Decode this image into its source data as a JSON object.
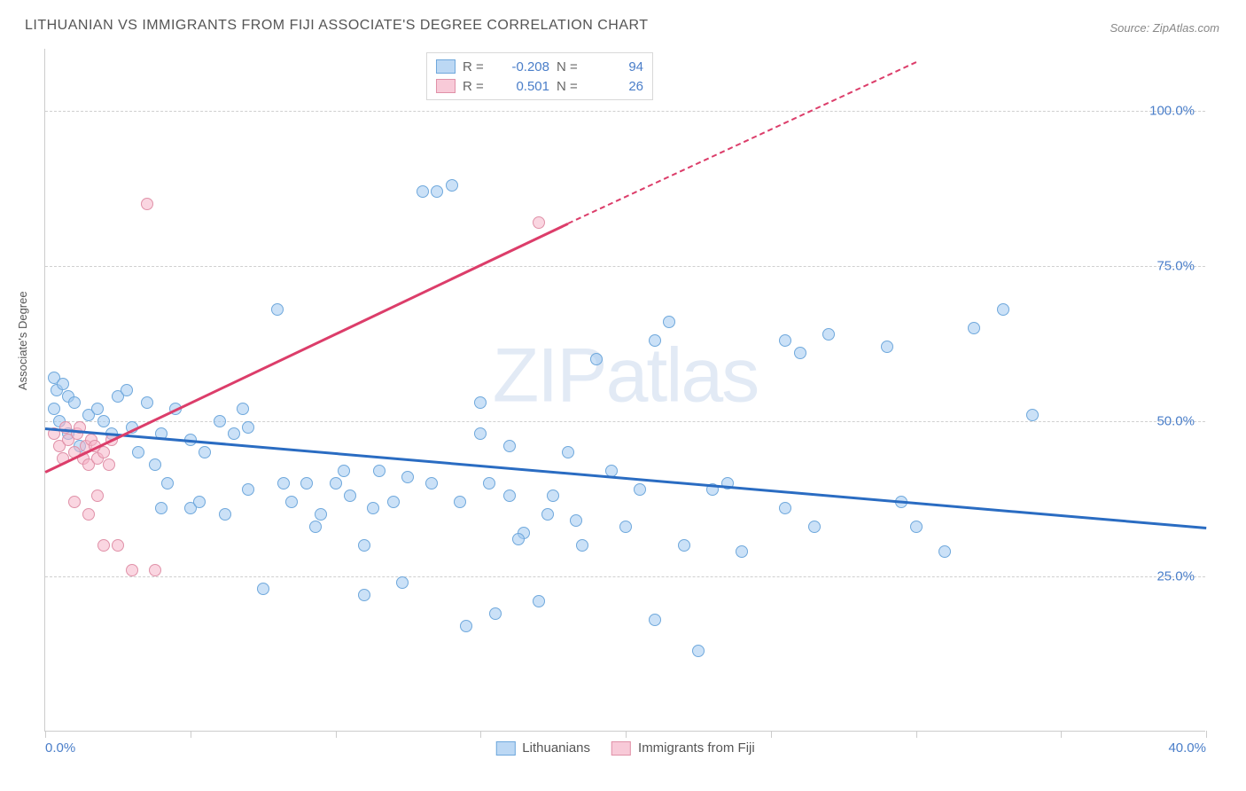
{
  "title": "LITHUANIAN VS IMMIGRANTS FROM FIJI ASSOCIATE'S DEGREE CORRELATION CHART",
  "source": "Source: ZipAtlas.com",
  "watermark_a": "ZIP",
  "watermark_b": "atlas",
  "ylabel": "Associate's Degree",
  "chart": {
    "type": "scatter",
    "xlim": [
      0,
      40
    ],
    "ylim": [
      0,
      110
    ],
    "y_ticks": [
      25,
      50,
      75,
      100
    ],
    "y_tick_labels": [
      "25.0%",
      "50.0%",
      "75.0%",
      "100.0%"
    ],
    "x_ticks": [
      0,
      5,
      10,
      15,
      20,
      25,
      30,
      35,
      40
    ],
    "x_tick_labels_shown": {
      "0": "0.0%",
      "40": "40.0%"
    },
    "background": "#ffffff",
    "grid_color": "#d0d0d0",
    "axis_color": "#cccccc",
    "series": [
      {
        "name": "Lithuanians",
        "color_fill": "rgba(160,200,240,0.55)",
        "color_stroke": "#6fa8dc",
        "R": "-0.208",
        "N": "94",
        "trend": {
          "x1": 0,
          "y1": 49,
          "x2": 40,
          "y2": 33,
          "color": "#2a6cc2",
          "width": 2.5
        },
        "points": [
          [
            0.3,
            57
          ],
          [
            0.4,
            55
          ],
          [
            0.6,
            56
          ],
          [
            0.8,
            54
          ],
          [
            1.0,
            53
          ],
          [
            0.5,
            50
          ],
          [
            0.8,
            48
          ],
          [
            1.2,
            46
          ],
          [
            0.3,
            52
          ],
          [
            1.5,
            51
          ],
          [
            2.0,
            50
          ],
          [
            2.5,
            54
          ],
          [
            3.0,
            49
          ],
          [
            3.5,
            53
          ],
          [
            4.0,
            48
          ],
          [
            4.5,
            52
          ],
          [
            5.0,
            47
          ],
          [
            3.2,
            45
          ],
          [
            4.0,
            36
          ],
          [
            5.0,
            36
          ],
          [
            5.5,
            45
          ],
          [
            6.0,
            50
          ],
          [
            6.5,
            48
          ],
          [
            7.0,
            49
          ],
          [
            7.0,
            39
          ],
          [
            7.5,
            23
          ],
          [
            8.0,
            68
          ],
          [
            8.5,
            37
          ],
          [
            9.0,
            40
          ],
          [
            9.5,
            35
          ],
          [
            10.0,
            40
          ],
          [
            10.5,
            38
          ],
          [
            11.0,
            22
          ],
          [
            11.0,
            30
          ],
          [
            11.5,
            42
          ],
          [
            12.0,
            37
          ],
          [
            12.5,
            41
          ],
          [
            13.0,
            87
          ],
          [
            13.5,
            87
          ],
          [
            14.0,
            88
          ],
          [
            14.5,
            17
          ],
          [
            15.0,
            48
          ],
          [
            15.0,
            53
          ],
          [
            15.5,
            19
          ],
          [
            16.0,
            38
          ],
          [
            16.0,
            46
          ],
          [
            16.5,
            32
          ],
          [
            17.0,
            21
          ],
          [
            17.5,
            38
          ],
          [
            18.0,
            45
          ],
          [
            18.5,
            30
          ],
          [
            19.0,
            60
          ],
          [
            19.5,
            42
          ],
          [
            20.0,
            33
          ],
          [
            20.5,
            39
          ],
          [
            21.0,
            18
          ],
          [
            21.0,
            63
          ],
          [
            21.5,
            66
          ],
          [
            22.0,
            30
          ],
          [
            22.5,
            13
          ],
          [
            23.0,
            39
          ],
          [
            23.5,
            40
          ],
          [
            24.0,
            29
          ],
          [
            25.5,
            36
          ],
          [
            25.5,
            63
          ],
          [
            26.0,
            61
          ],
          [
            26.5,
            33
          ],
          [
            27.0,
            64
          ],
          [
            29.0,
            62
          ],
          [
            29.5,
            37
          ],
          [
            30.0,
            33
          ],
          [
            31.0,
            29
          ],
          [
            32.0,
            65
          ],
          [
            33.0,
            68
          ],
          [
            34.0,
            51
          ],
          [
            1.8,
            52
          ],
          [
            2.3,
            48
          ],
          [
            2.8,
            55
          ],
          [
            3.8,
            43
          ],
          [
            4.2,
            40
          ],
          [
            5.3,
            37
          ],
          [
            6.2,
            35
          ],
          [
            6.8,
            52
          ],
          [
            8.2,
            40
          ],
          [
            9.3,
            33
          ],
          [
            10.3,
            42
          ],
          [
            11.3,
            36
          ],
          [
            12.3,
            24
          ],
          [
            13.3,
            40
          ],
          [
            14.3,
            37
          ],
          [
            15.3,
            40
          ],
          [
            16.3,
            31
          ],
          [
            17.3,
            35
          ],
          [
            18.3,
            34
          ]
        ]
      },
      {
        "name": "Immigrants from Fiji",
        "color_fill": "rgba(245,180,200,0.55)",
        "color_stroke": "#e091a8",
        "R": "0.501",
        "N": "26",
        "trend": {
          "x1": 0,
          "y1": 42,
          "x2": 18,
          "y2": 82,
          "color": "#dc3d6a",
          "width": 2.5,
          "dash_to_x": 30,
          "dash_to_y": 108
        },
        "points": [
          [
            0.3,
            48
          ],
          [
            0.5,
            46
          ],
          [
            0.6,
            44
          ],
          [
            0.8,
            47
          ],
          [
            1.0,
            45
          ],
          [
            1.1,
            48
          ],
          [
            1.3,
            44
          ],
          [
            1.4,
            46
          ],
          [
            1.5,
            43
          ],
          [
            1.6,
            47
          ],
          [
            1.8,
            44
          ],
          [
            2.0,
            45
          ],
          [
            2.2,
            43
          ],
          [
            1.0,
            37
          ],
          [
            1.5,
            35
          ],
          [
            2.0,
            30
          ],
          [
            2.5,
            30
          ],
          [
            1.8,
            38
          ],
          [
            3.0,
            26
          ],
          [
            3.8,
            26
          ],
          [
            3.5,
            85
          ],
          [
            0.7,
            49
          ],
          [
            1.2,
            49
          ],
          [
            1.7,
            46
          ],
          [
            2.3,
            47
          ],
          [
            17.0,
            82
          ]
        ]
      }
    ]
  },
  "legend_bottom": [
    {
      "swatch": "blue",
      "label": "Lithuanians"
    },
    {
      "swatch": "pink",
      "label": "Immigrants from Fiji"
    }
  ],
  "legend_top_labels": {
    "R": "R =",
    "N": "N ="
  }
}
